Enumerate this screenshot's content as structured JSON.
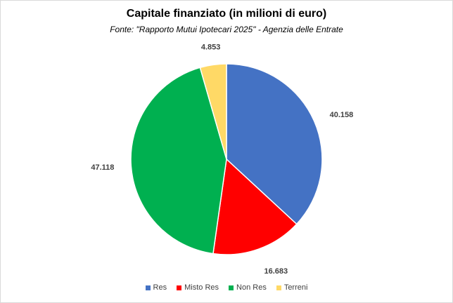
{
  "chart_data": {
    "type": "pie",
    "title": "Capitale finanziato (in milioni di euro)",
    "subtitle": "Fonte: \"Rapporto Mutui Ipotecari 2025\" - Agenzia delle Entrate",
    "categories": [
      "Res",
      "Misto Res",
      "Non Res",
      "Terreni"
    ],
    "values": [
      40158,
      16683,
      47118,
      4853
    ],
    "value_labels": [
      "40.158",
      "16.683",
      "47.118",
      "4.853"
    ],
    "colors": [
      "#4472c4",
      "#ff0000",
      "#00b050",
      "#ffd966"
    ],
    "legend_position": "bottom"
  }
}
